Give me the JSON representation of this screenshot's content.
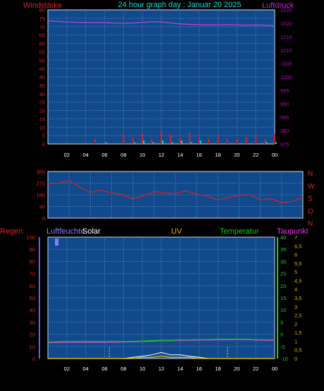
{
  "header": {
    "title": "24 hour graph day : Januar 20 2025",
    "left_label": "Windstärke",
    "right_label": "Luftdruck"
  },
  "colors": {
    "background": "#000000",
    "plot_bg": "#114a8c",
    "grid": "#6a8cc0",
    "title": "#00e0e0",
    "wind": "#e02020",
    "gust": "#00e0e0",
    "pressure": "#c040e0",
    "direction": "#e02020",
    "humidity": "#6060ff",
    "solar": "#ffffff",
    "uv": "#e0b000",
    "temperature": "#00d000",
    "dewpoint": "#ff20ff",
    "rain": "#e02020",
    "axis_text_left": "#e02020",
    "axis_text_right_pressure": "#c000c0",
    "axis_text_time": "#ffffff"
  },
  "x_axis": {
    "ticks": [
      "02",
      "04",
      "06",
      "08",
      "10",
      "12",
      "14",
      "16",
      "18",
      "20",
      "22",
      "00"
    ]
  },
  "panel_wind": {
    "left_ticks": [
      "80",
      "75",
      "70",
      "65",
      "60",
      "55",
      "50",
      "45",
      "40",
      "35",
      "30",
      "25",
      "20",
      "15",
      "10",
      "5",
      "0"
    ],
    "right_ticks": [
      "1025",
      "1020",
      "1015",
      "1010",
      "1005",
      "1000",
      "995",
      "990",
      "985",
      "980",
      "975"
    ]
  },
  "panel_direction": {
    "left_ticks": [
      "360",
      "270",
      "180",
      "90",
      "0"
    ],
    "compass": [
      "N",
      "W",
      "S",
      "O",
      "N"
    ]
  },
  "panel_env": {
    "labels": {
      "rain": "Regen",
      "humidity": "Luftfeuchte",
      "solar": "Solar",
      "uv": "UV",
      "temperature": "Temperatur",
      "dewpoint": "Taupunkt"
    },
    "humidity_ticks": [
      "100",
      "90",
      "80",
      "70",
      "60",
      "50",
      "40",
      "30",
      "20",
      "10",
      "0"
    ],
    "temp_ticks": [
      "40",
      "35",
      "30",
      "25",
      "20",
      "15",
      "10",
      "5",
      "0",
      "-5",
      "-10"
    ],
    "rain_ticks": [
      "7",
      "6,5",
      "6",
      "5,5",
      "5",
      "4,5",
      "4",
      "3,5",
      "3",
      "2,5",
      "2",
      "1,5",
      "1",
      "0,5",
      "0"
    ]
  },
  "chart_data": [
    {
      "type": "line",
      "title": "24 hour graph day : Januar 20 2025",
      "xlabel": "",
      "ylabel": "Windstärke",
      "ylim": [
        0,
        80
      ],
      "y2label": "Luftdruck",
      "y2lim": [
        975,
        1025
      ],
      "x": [
        0,
        1,
        2,
        3,
        4,
        5,
        6,
        7,
        8,
        9,
        10,
        11,
        12,
        13,
        14,
        15,
        16,
        17,
        18,
        19,
        20,
        21,
        22,
        23,
        24
      ],
      "series": [
        {
          "name": "Luftdruck",
          "axis": "right",
          "values": [
            1020.9,
            1020.7,
            1020.5,
            1020.4,
            1020.3,
            1020.3,
            1020.2,
            1020.1,
            1020.0,
            1020.1,
            1020.3,
            1020.6,
            1020.5,
            1020.1,
            1019.8,
            1019.6,
            1019.5,
            1019.4,
            1019.4,
            1019.5,
            1019.4,
            1019.3,
            1019.4,
            1019.3,
            1019.1
          ]
        },
        {
          "name": "Windstärke",
          "axis": "left",
          "values": [
            0,
            0,
            0,
            0,
            0,
            3,
            0,
            0,
            6,
            4,
            6,
            3,
            8,
            6,
            4,
            7,
            4,
            3,
            5,
            3,
            3,
            4,
            5,
            3,
            6
          ]
        },
        {
          "name": "Böen",
          "axis": "left",
          "values": [
            0,
            0,
            0,
            0,
            0,
            0,
            1,
            0,
            0,
            1,
            2,
            1,
            2,
            1,
            2,
            1,
            2,
            0,
            0,
            0,
            0,
            0,
            0,
            1,
            1
          ]
        }
      ]
    },
    {
      "type": "line",
      "title": "",
      "ylabel": "",
      "ylim": [
        0,
        360
      ],
      "x": [
        0,
        1,
        2,
        3,
        4,
        5,
        6,
        7,
        8,
        9,
        10,
        11,
        12,
        13,
        14,
        15,
        16,
        17,
        18,
        19,
        20,
        21,
        22,
        23,
        24
      ],
      "series": [
        {
          "name": "Windrichtung",
          "values": [
            265,
            270,
            290,
            240,
            200,
            215,
            195,
            180,
            150,
            170,
            205,
            195,
            190,
            210,
            185,
            170,
            140,
            160,
            175,
            180,
            140,
            150,
            120,
            130,
            160
          ]
        }
      ]
    },
    {
      "type": "line",
      "title": "",
      "ylabel": "Luftfeuchte",
      "ylim": [
        0,
        100
      ],
      "y2label": "Temperatur",
      "y2lim": [
        -10,
        40
      ],
      "y3label": "Regen",
      "y3lim": [
        0,
        7
      ],
      "x": [
        0,
        1,
        2,
        3,
        4,
        5,
        6,
        7,
        8,
        9,
        10,
        11,
        12,
        13,
        14,
        15,
        16,
        17,
        18,
        19,
        20,
        21,
        22,
        23,
        24
      ],
      "series": [
        {
          "name": "Temperatur",
          "axis": "right",
          "values": [
            -3.2,
            -3.1,
            -3.0,
            -3.0,
            -3.0,
            -3.0,
            -3.0,
            -3.0,
            -3.0,
            -2.9,
            -2.8,
            -2.6,
            -2.5,
            -2.5,
            -2.3,
            -2.3,
            -2.2,
            -2.2,
            -2.0,
            -2.0,
            -2.0,
            -2.0,
            -2.2,
            -2.3,
            -2.3
          ]
        },
        {
          "name": "Taupunkt",
          "axis": "right",
          "values": [
            -3.5,
            -3.4,
            -3.3,
            -3.3,
            -3.3,
            -3.3,
            -3.3,
            -3.3,
            -3.2,
            -3.1,
            -3.0,
            -2.9,
            -2.7,
            -2.7,
            -2.5,
            -2.5,
            -2.4,
            -2.4,
            -2.3,
            -2.3,
            -2.2,
            -2.2,
            -2.4,
            -2.5,
            -2.6
          ]
        },
        {
          "name": "Solar",
          "axis": "left",
          "values": [
            0,
            0,
            0,
            0,
            0,
            0,
            0,
            0,
            0,
            1,
            2,
            3,
            5,
            3,
            3,
            2,
            1,
            0,
            0,
            0,
            0,
            0,
            0,
            0,
            0
          ]
        },
        {
          "name": "UV",
          "axis": "left",
          "values": [
            0,
            0,
            0,
            0,
            0,
            0,
            0,
            0,
            0,
            0,
            1,
            1,
            2,
            1,
            1,
            1,
            0,
            0,
            0,
            0,
            0,
            0,
            0,
            0,
            0
          ]
        }
      ]
    }
  ]
}
